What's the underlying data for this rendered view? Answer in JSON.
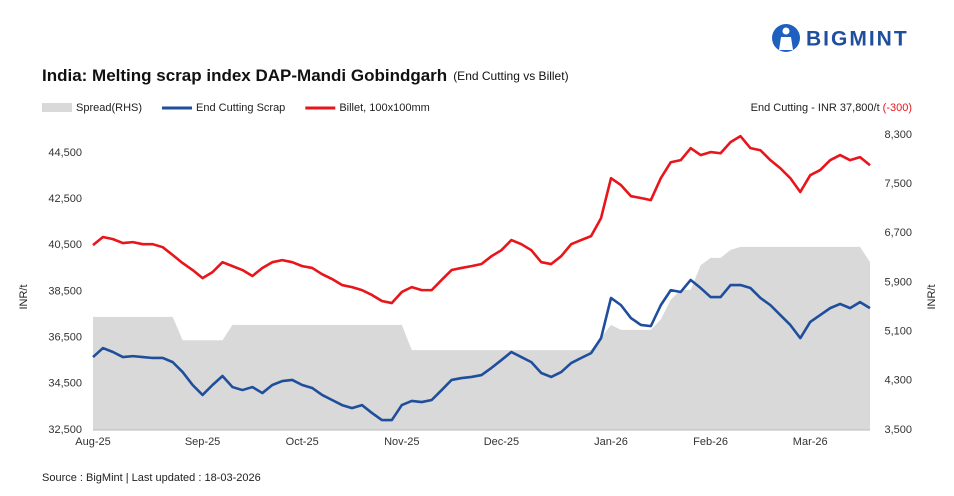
{
  "brand": "BIGMINT",
  "chart_data": {
    "type": "line",
    "title": "India: Melting scrap index DAP-Mandi Gobindgarh",
    "subtitle": "(End Cutting vs Billet)",
    "annotation": {
      "text": "End Cutting - INR 37,800/t",
      "change": "(-300)"
    },
    "ylabel": "INR/t",
    "y2label": "INR/t",
    "source": "Source : BigMint | Last updated : 18-03-2026",
    "categories": [
      "Aug-25",
      null,
      null,
      null,
      null,
      null,
      null,
      null,
      null,
      null,
      null,
      "Sep-25",
      null,
      null,
      null,
      null,
      null,
      null,
      null,
      null,
      null,
      "Oct-25",
      null,
      null,
      null,
      null,
      null,
      null,
      null,
      null,
      null,
      "Nov-25",
      null,
      null,
      null,
      null,
      null,
      null,
      null,
      null,
      null,
      "Dec-25",
      null,
      null,
      null,
      null,
      null,
      null,
      null,
      null,
      null,
      null,
      "Jan-26",
      null,
      null,
      null,
      null,
      null,
      null,
      null,
      null,
      null,
      "Feb-26",
      null,
      null,
      null,
      null,
      null,
      null,
      null,
      null,
      null,
      "Mar-26",
      null,
      null,
      null,
      null,
      null,
      null
    ],
    "series": [
      {
        "name": "Spread(RHS)",
        "color": "#d9d9d9",
        "axis": "y2",
        "mark": "area",
        "values": [
          5340,
          5340,
          5340,
          5340,
          5340,
          5340,
          5340,
          5340,
          5340,
          4960,
          4960,
          4960,
          4960,
          4960,
          5210,
          5210,
          5210,
          5210,
          5210,
          5210,
          5210,
          5210,
          5210,
          5210,
          5210,
          5210,
          5210,
          5210,
          5210,
          5210,
          5210,
          5210,
          4800,
          4800,
          4800,
          4800,
          4800,
          4800,
          4800,
          4800,
          4800,
          4800,
          4800,
          4800,
          4800,
          4800,
          4800,
          4800,
          4800,
          4800,
          4800,
          5000,
          5210,
          5130,
          5130,
          5130,
          5130,
          5300,
          5620,
          5780,
          5780,
          6180,
          6300,
          6300,
          6430,
          6480,
          6480,
          6480,
          6480,
          6480,
          6480,
          6480,
          6480,
          6480,
          6480,
          6480,
          6480,
          6480,
          6230
        ]
      },
      {
        "name": "End Cutting Scrap",
        "color": "#1f4e9c",
        "values": [
          35660,
          36050,
          35880,
          35660,
          35700,
          35660,
          35620,
          35620,
          35440,
          35010,
          34450,
          34020,
          34450,
          34840,
          34360,
          34230,
          34360,
          34100,
          34450,
          34620,
          34670,
          34450,
          34320,
          34020,
          33800,
          33580,
          33450,
          33580,
          33240,
          32930,
          32930,
          33580,
          33760,
          33710,
          33800,
          34230,
          34670,
          34750,
          34800,
          34880,
          35190,
          35530,
          35880,
          35660,
          35440,
          34970,
          34800,
          35010,
          35400,
          35620,
          35830,
          36480,
          38220,
          37910,
          37350,
          37050,
          37000,
          37910,
          38560,
          38480,
          39000,
          38650,
          38260,
          38260,
          38780,
          38780,
          38650,
          38220,
          37910,
          37480,
          37050,
          36480,
          37180,
          37480,
          37780,
          37960,
          37780,
          38040,
          37780
        ]
      },
      {
        "name": "Billet, 100x100mm",
        "color": "#e8151b",
        "values": [
          40510,
          40860,
          40770,
          40600,
          40640,
          40550,
          40550,
          40420,
          40080,
          39730,
          39430,
          39080,
          39340,
          39770,
          39600,
          39430,
          39170,
          39520,
          39770,
          39860,
          39770,
          39600,
          39520,
          39250,
          39040,
          38780,
          38690,
          38560,
          38350,
          38090,
          38000,
          38480,
          38690,
          38560,
          38560,
          39000,
          39430,
          39520,
          39600,
          39690,
          40030,
          40290,
          40730,
          40550,
          40290,
          39770,
          39690,
          40030,
          40550,
          40730,
          40900,
          41680,
          43410,
          43110,
          42630,
          42550,
          42460,
          43410,
          44100,
          44190,
          44710,
          44410,
          44540,
          44490,
          44970,
          45230,
          44710,
          44620,
          44190,
          43840,
          43410,
          42810,
          43540,
          43760,
          44190,
          44410,
          44190,
          44320,
          43970
        ]
      }
    ],
    "ylim": [
      32500,
      45930
    ],
    "yticks": [
      {
        "value": 32500,
        "label": "32,500"
      },
      {
        "value": 34500,
        "label": "34,500"
      },
      {
        "value": 36500,
        "label": "36,500"
      },
      {
        "value": 38500,
        "label": "38,500"
      },
      {
        "value": 40500,
        "label": "40,500"
      },
      {
        "value": 42500,
        "label": "42,500"
      },
      {
        "value": 44500,
        "label": "44,500"
      }
    ],
    "y2lim": [
      3500,
      8544
    ],
    "y2ticks": [
      {
        "value": 3500,
        "label": "3,500"
      },
      {
        "value": 4300,
        "label": "4,300"
      },
      {
        "value": 5100,
        "label": "5,100"
      },
      {
        "value": 5900,
        "label": "5,900"
      },
      {
        "value": 6700,
        "label": "6,700"
      },
      {
        "value": 7500,
        "label": "7,500"
      },
      {
        "value": 8300,
        "label": "8,300"
      }
    ],
    "grid": false
  }
}
